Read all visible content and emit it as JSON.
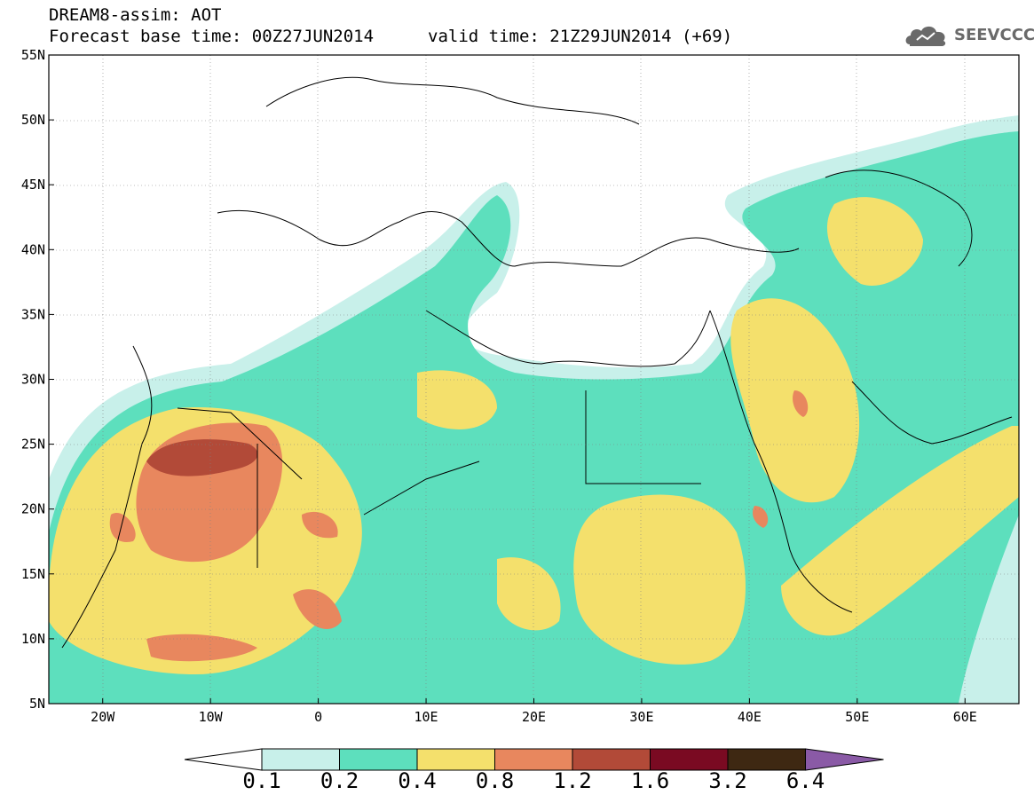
{
  "header": {
    "title": "DREAM8-assim: AOT",
    "base_time": "Forecast base time: 00Z27JUN2014",
    "valid_time": "valid time: 21Z29JUN2014 (+69)"
  },
  "logo": {
    "text": "SEEVCCC",
    "icon": "cloud-icon"
  },
  "map": {
    "lat_labels": [
      "55N",
      "50N",
      "45N",
      "40N",
      "35N",
      "30N",
      "25N",
      "20N",
      "15N",
      "10N",
      "5N"
    ],
    "lon_labels": [
      "20W",
      "10W",
      "0",
      "10E",
      "20E",
      "30E",
      "40E",
      "50E",
      "60E"
    ],
    "lat_range": [
      5,
      55
    ],
    "lon_range": [
      -25,
      65
    ]
  },
  "colorbar": {
    "labels": [
      "0.1",
      "0.2",
      "0.4",
      "0.8",
      "1.2",
      "1.6",
      "3.2",
      "6.4"
    ],
    "colors": [
      "#ffffff",
      "#c8f0ea",
      "#5ddfbd",
      "#f4e06c",
      "#e8875e",
      "#b24a38",
      "#7a0a22",
      "#3e2812",
      "#8a5aa6"
    ]
  },
  "colors": {
    "c1": "#c8f0ea",
    "c2": "#5ddfbd",
    "c3": "#f4e06c",
    "c4": "#e8875e",
    "c5": "#b24a38"
  }
}
